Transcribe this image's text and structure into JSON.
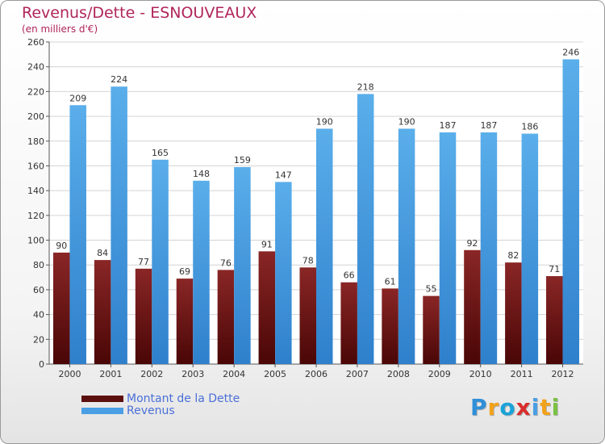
{
  "chart_data": {
    "type": "bar",
    "title": "Revenus/Dette - ESNOUVEAUX",
    "subtitle": "(en milliers d'€)",
    "categories": [
      "2000",
      "2001",
      "2002",
      "2003",
      "2004",
      "2005",
      "2006",
      "2007",
      "2008",
      "2009",
      "2010",
      "2011",
      "2012"
    ],
    "series": [
      {
        "name": "Montant de la Dette",
        "color": "#7a1a1a",
        "values": [
          90,
          84,
          77,
          69,
          76,
          91,
          78,
          66,
          61,
          55,
          92,
          82,
          71
        ]
      },
      {
        "name": "Revenus",
        "color": "#4a9fe4",
        "values": [
          209,
          224,
          165,
          148,
          159,
          147,
          190,
          218,
          190,
          187,
          187,
          186,
          246
        ]
      }
    ],
    "ylim": [
      0,
      260
    ],
    "yticks": [
      0,
      20,
      40,
      60,
      80,
      100,
      120,
      140,
      160,
      180,
      200,
      220,
      240,
      260
    ],
    "grid": true,
    "legend_position": "bottom-left"
  },
  "brand": {
    "letters": [
      "P",
      "r",
      "o",
      "x",
      "i",
      "t",
      "i"
    ],
    "colors": [
      "#2f8fd8",
      "#f2a21a",
      "#1aa3d8",
      "#d92d2d",
      "#4a9fe4",
      "#f2a21a",
      "#7ac143"
    ]
  }
}
